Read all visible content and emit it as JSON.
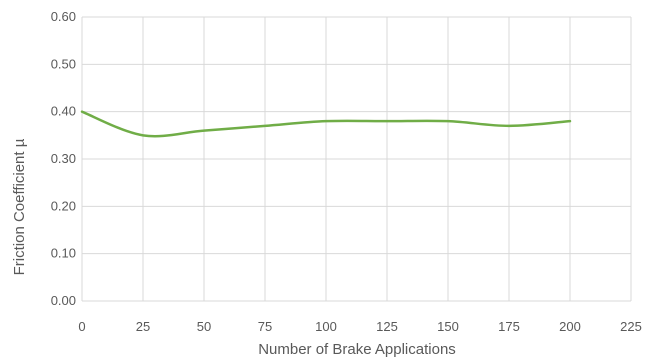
{
  "chart_data": {
    "type": "line",
    "title": "",
    "xlabel": "Number of Brake Applications",
    "ylabel": "Friction Coefficient µ",
    "xlim": [
      0,
      225
    ],
    "ylim": [
      0,
      0.6
    ],
    "x_ticks": [
      "0",
      "25",
      "50",
      "75",
      "100",
      "125",
      "150",
      "175",
      "200",
      "225"
    ],
    "y_ticks": [
      "0.00",
      "0.10",
      "0.20",
      "0.30",
      "0.40",
      "0.50",
      "0.60"
    ],
    "grid": true,
    "legend": "none",
    "series": [
      {
        "color": "#70ad47",
        "smooth": true,
        "x": [
          0,
          25,
          50,
          75,
          100,
          125,
          150,
          175,
          200
        ],
        "y": [
          0.4,
          0.35,
          0.36,
          0.37,
          0.38,
          0.38,
          0.38,
          0.37,
          0.38
        ]
      }
    ]
  }
}
